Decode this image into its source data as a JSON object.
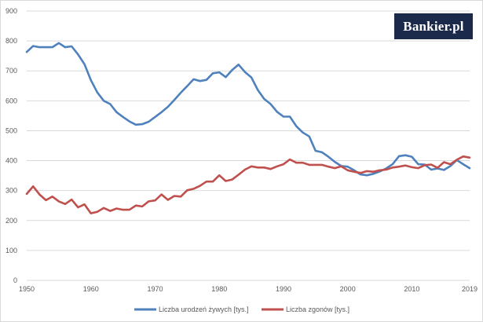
{
  "logo": {
    "text": "Bankier.pl"
  },
  "colors": {
    "births": "#4f81bd",
    "deaths": "#c0504d",
    "grid": "#d9d9d9",
    "logo_bg": "#1b2a4a"
  },
  "chart_data": {
    "type": "line",
    "title": "",
    "xlabel": "",
    "ylabel": "",
    "xlim": [
      1950,
      2019
    ],
    "ylim": [
      0,
      900
    ],
    "yticks": [
      0,
      100,
      200,
      300,
      400,
      500,
      600,
      700,
      800,
      900
    ],
    "xticks": [
      1950,
      1960,
      1970,
      1980,
      1990,
      2000,
      2010,
      2019
    ],
    "grid": "horizontal",
    "legend": "bottom",
    "x": [
      1950,
      1951,
      1952,
      1953,
      1954,
      1955,
      1956,
      1957,
      1958,
      1959,
      1960,
      1961,
      1962,
      1963,
      1964,
      1965,
      1966,
      1967,
      1968,
      1969,
      1970,
      1971,
      1972,
      1973,
      1974,
      1975,
      1976,
      1977,
      1978,
      1979,
      1980,
      1981,
      1982,
      1983,
      1984,
      1985,
      1986,
      1987,
      1988,
      1989,
      1990,
      1991,
      1992,
      1993,
      1994,
      1995,
      1996,
      1997,
      1998,
      1999,
      2000,
      2001,
      2002,
      2003,
      2004,
      2005,
      2006,
      2007,
      2008,
      2009,
      2010,
      2011,
      2012,
      2013,
      2014,
      2015,
      2016,
      2017,
      2018,
      2019
    ],
    "series": [
      {
        "name": "Liczba urodzeń żywych [tys.]",
        "color": "#4f81bd",
        "values": [
          763,
          783,
          779,
          779,
          779,
          793,
          779,
          782,
          755,
          722,
          669,
          628,
          600,
          589,
          562,
          546,
          531,
          520,
          522,
          530,
          546,
          562,
          580,
          603,
          627,
          649,
          672,
          666,
          670,
          692,
          695,
          679,
          703,
          721,
          696,
          678,
          636,
          606,
          589,
          563,
          547,
          547,
          515,
          494,
          481,
          433,
          428,
          413,
          396,
          382,
          380,
          368,
          354,
          351,
          356,
          364,
          374,
          388,
          415,
          418,
          413,
          388,
          387,
          370,
          374,
          369,
          382,
          402,
          388,
          375
        ]
      },
      {
        "name": "Liczba zgonów [tys.]",
        "color": "#c0504d",
        "values": [
          289,
          314,
          287,
          268,
          280,
          264,
          255,
          270,
          244,
          254,
          224,
          229,
          242,
          232,
          240,
          236,
          236,
          250,
          247,
          264,
          267,
          287,
          269,
          282,
          280,
          301,
          306,
          316,
          330,
          330,
          351,
          332,
          337,
          353,
          370,
          381,
          377,
          377,
          372,
          381,
          388,
          404,
          393,
          393,
          386,
          386,
          386,
          380,
          375,
          381,
          368,
          363,
          359,
          365,
          363,
          368,
          370,
          377,
          380,
          384,
          378,
          375,
          385,
          387,
          376,
          395,
          388,
          403,
          414,
          410
        ]
      }
    ]
  }
}
